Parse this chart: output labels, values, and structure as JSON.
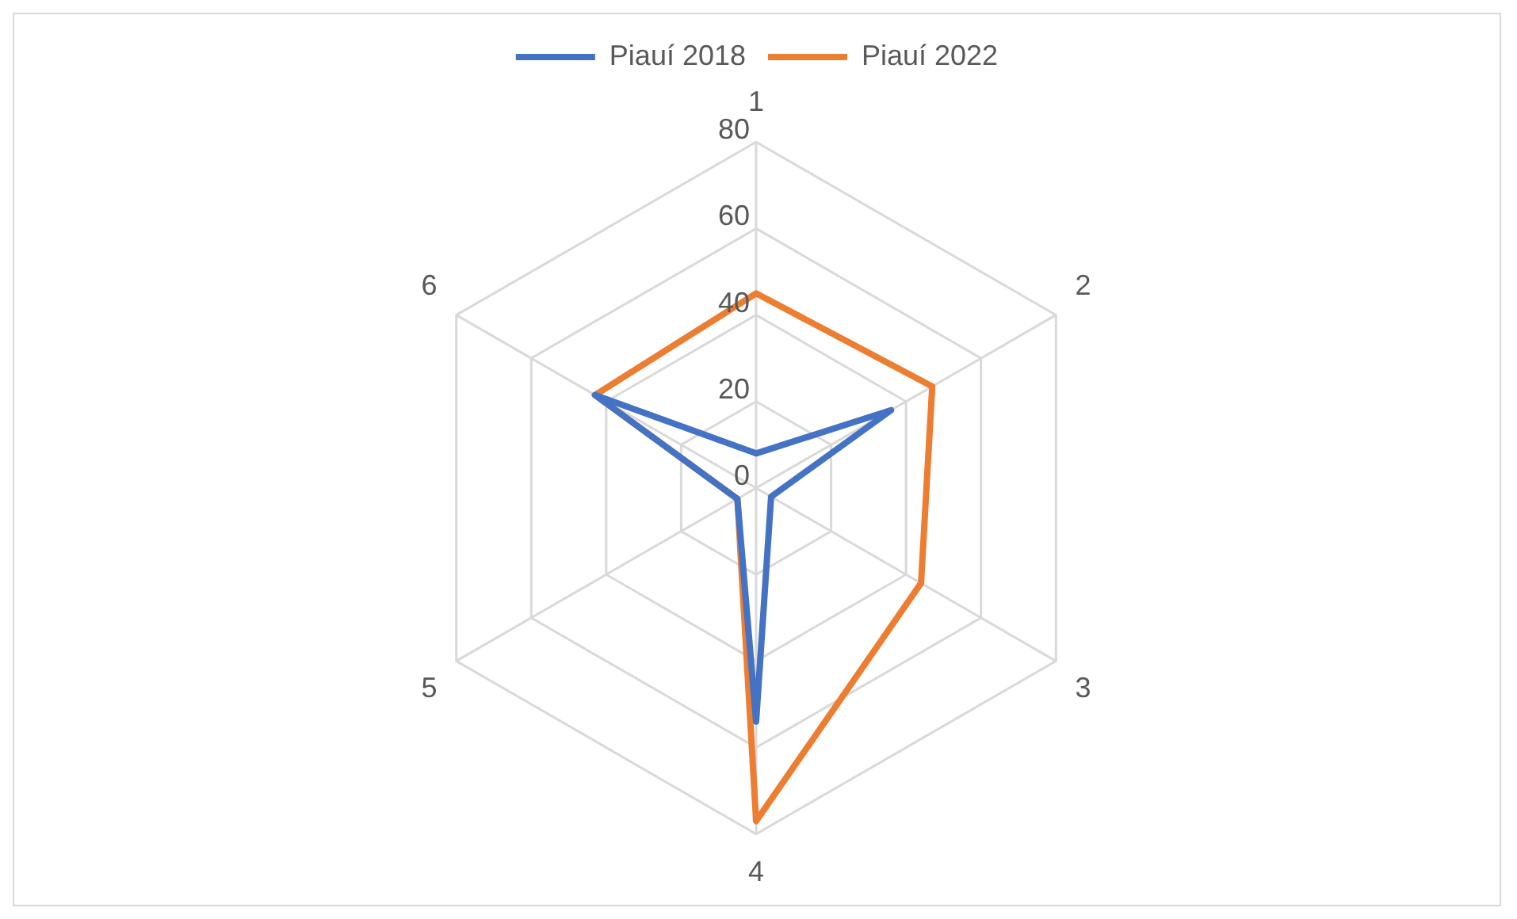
{
  "chart_data": {
    "type": "radar",
    "categories": [
      "1",
      "2",
      "3",
      "4",
      "5",
      "6"
    ],
    "series": [
      {
        "name": "Piauí 2018",
        "color": "#4472c4",
        "values": [
          8,
          36,
          4,
          54,
          5,
          43
        ]
      },
      {
        "name": "Piauí 2022",
        "color": "#ed7d31",
        "values": [
          45,
          47,
          44,
          77,
          5,
          43
        ]
      }
    ],
    "ylim": [
      0,
      80
    ],
    "yticks": [
      0,
      20,
      40,
      60,
      80
    ],
    "grid": true,
    "legend": "top",
    "marker": "none",
    "line_style": "solid"
  }
}
